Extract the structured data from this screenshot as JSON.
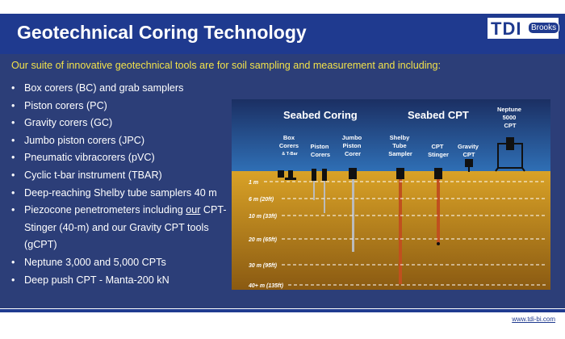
{
  "slide": {
    "title": "Geotechnical Coring Technology",
    "logo": {
      "main": "TDI",
      "sub": "Brooks"
    },
    "subtitle": "Our suite of innovative geotechnical tools are for soil sampling and measurement and including:",
    "bullets": [
      {
        "text": "Box corers (BC) and grab samplers"
      },
      {
        "text": "Piston corers (PC)"
      },
      {
        "text": "Gravity corers (GC)"
      },
      {
        "text": "Jumbo piston corers (JPC)"
      },
      {
        "text": "Pneumatic vibracorers (pVC)"
      },
      {
        "text": "Cyclic t-bar instrument (TBAR)"
      },
      {
        "text": "Deep-reaching Shelby tube samplers 40 m"
      },
      {
        "prefix": "Piezocone penetrometers including ",
        "link": "our",
        "suffix": " CPT-Stinger (40-m) and our Gravity CPT tools (gCPT)"
      },
      {
        "text": "Neptune 3,000 and 5,000 CPTs"
      },
      {
        "text": "Deep push CPT - Manta-200 kN"
      }
    ],
    "footer_url": "www.tdi-bi.com"
  },
  "diagram": {
    "headings": {
      "coring": "Seabed Coring",
      "cpt": "Seabed CPT"
    },
    "tools": {
      "box": [
        "Box",
        "Corers",
        "& T-Bar"
      ],
      "piston": [
        "Piston",
        "Corers"
      ],
      "jumbo": [
        "Jumbo",
        "Piston",
        "Corer"
      ],
      "shelby": [
        "Shelby",
        "Tube",
        "Sampler"
      ],
      "stinger": [
        "CPT",
        "Stinger"
      ],
      "gravity": [
        "Gravity",
        "CPT"
      ],
      "neptune": [
        "Neptune",
        "5000",
        "CPT"
      ]
    },
    "depths": [
      "1 m",
      "6 m (20ft)",
      "10 m (33ft)",
      "20 m (65ft)",
      "30 m (95ft)",
      "40+ m (135ft)"
    ],
    "colors": {
      "water_top": "#1b2f63",
      "water_bottom": "#2f6fb5",
      "soil_top": "#d9a227",
      "soil_bottom": "#8a5a12"
    }
  }
}
